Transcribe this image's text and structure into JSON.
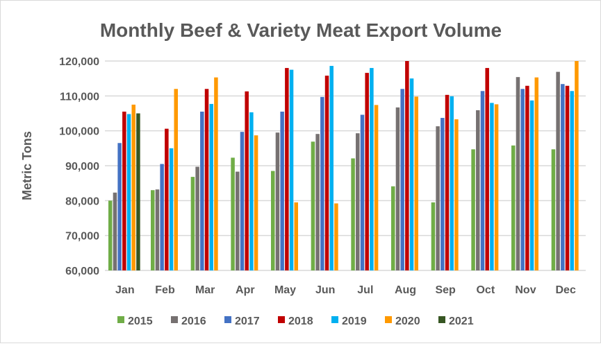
{
  "chart_data": {
    "type": "bar",
    "title": "Monthly Beef & Variety Meat Export Volume",
    "xlabel": "",
    "ylabel": "Metric Tons",
    "ylim": [
      60000,
      120000
    ],
    "yticks": [
      "60,000",
      "70,000",
      "80,000",
      "90,000",
      "100,000",
      "110,000",
      "120,000"
    ],
    "grid": true,
    "legend": "bottom",
    "categories": [
      "Jan",
      "Feb",
      "Mar",
      "Apr",
      "May",
      "Jun",
      "Jul",
      "Aug",
      "Sep",
      "Oct",
      "Nov",
      "Dec"
    ],
    "series": [
      {
        "name": "2015",
        "color": "#70ad47",
        "values": [
          80000,
          83000,
          86800,
          92300,
          88500,
          96900,
          92100,
          84100,
          79500,
          94700,
          95800,
          94700
        ]
      },
      {
        "name": "2016",
        "color": "#767171",
        "values": [
          82300,
          83200,
          89700,
          88300,
          99500,
          99100,
          99300,
          106700,
          101300,
          105900,
          115400,
          116900
        ]
      },
      {
        "name": "2017",
        "color": "#4472c4",
        "values": [
          96500,
          90500,
          105500,
          99700,
          105500,
          109700,
          104600,
          112000,
          103700,
          111400,
          112000,
          113400
        ]
      },
      {
        "name": "2018",
        "color": "#c00000",
        "values": [
          105500,
          100600,
          112000,
          111300,
          118000,
          115800,
          116600,
          120000,
          110300,
          118000,
          112900,
          112900
        ]
      },
      {
        "name": "2019",
        "color": "#00b0f0",
        "values": [
          104800,
          95000,
          107700,
          105300,
          117500,
          118600,
          118000,
          115000,
          109900,
          108000,
          108700,
          111400
        ]
      },
      {
        "name": "2020",
        "color": "#ff9900",
        "values": [
          107500,
          112000,
          115300,
          98700,
          79500,
          79200,
          107400,
          109800,
          103300,
          107600,
          115300,
          120000
        ]
      },
      {
        "name": "2021",
        "color": "#375623",
        "values": [
          105000,
          null,
          null,
          null,
          null,
          null,
          null,
          null,
          null,
          null,
          null,
          null
        ]
      }
    ]
  }
}
